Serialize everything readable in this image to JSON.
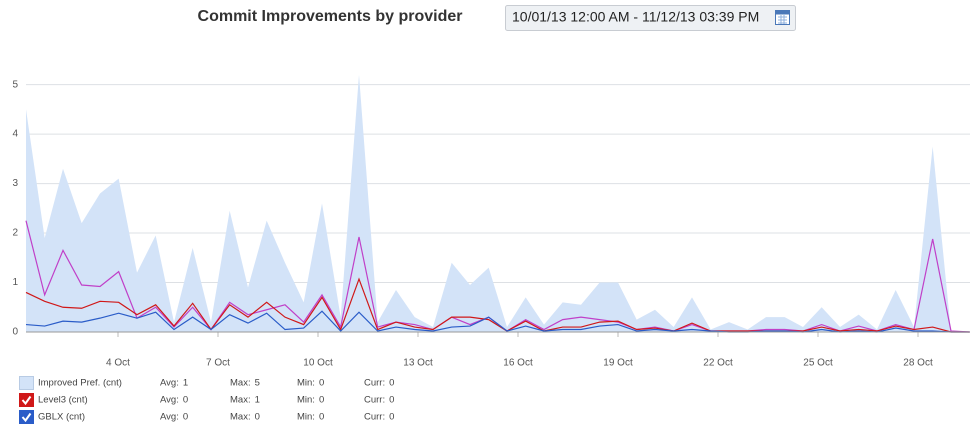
{
  "chart_data": {
    "type": "line",
    "title": "Commit Improvements by provider",
    "date_range": "10/01/13 12:00 AM - 11/12/13 03:39 PM",
    "x": [
      1.24,
      1.8,
      2.35,
      2.91,
      3.46,
      4.02,
      4.57,
      5.13,
      5.68,
      6.24,
      6.79,
      7.35,
      7.9,
      8.46,
      9.01,
      9.57,
      10.12,
      10.68,
      11.23,
      11.79,
      12.34,
      12.9,
      13.45,
      14.01,
      14.56,
      15.12,
      15.67,
      16.23,
      16.78,
      17.34,
      17.89,
      18.45,
      19.0,
      19.56,
      20.11,
      20.67,
      21.22,
      21.78,
      22.33,
      22.89,
      23.44,
      24.0,
      24.55,
      25.11,
      25.66,
      26.22,
      26.77,
      27.33,
      27.88,
      28.44,
      28.99,
      29.55
    ],
    "xlim": [
      1.24,
      29.56
    ],
    "xticks": [
      {
        "value": 4,
        "label": "4 Oct"
      },
      {
        "value": 7,
        "label": "7 Oct"
      },
      {
        "value": 10,
        "label": "10 Oct"
      },
      {
        "value": 13,
        "label": "13 Oct"
      },
      {
        "value": 16,
        "label": "16 Oct"
      },
      {
        "value": 19,
        "label": "19 Oct"
      },
      {
        "value": 22,
        "label": "22 Oct"
      },
      {
        "value": 25,
        "label": "25 Oct"
      },
      {
        "value": 28,
        "label": "28 Oct"
      }
    ],
    "ylim": [
      0,
      5.7
    ],
    "yticks": [
      0,
      1,
      2,
      3,
      4,
      5
    ],
    "grid": true,
    "stat_labels": [
      "Avg:",
      "Max:",
      "Min:",
      "Curr:"
    ],
    "series": [
      {
        "name": "Improved Pref. (cnt)",
        "kind": "area",
        "color": "#d3e3f8",
        "stats": [
          1,
          5,
          0,
          0
        ],
        "values": [
          4.5,
          1.9,
          3.3,
          2.2,
          2.8,
          3.1,
          1.2,
          1.95,
          0.2,
          1.7,
          0.2,
          2.45,
          0.9,
          2.25,
          1.4,
          0.6,
          2.6,
          0.3,
          5.2,
          0.2,
          0.85,
          0.3,
          0.1,
          1.4,
          0.95,
          1.3,
          0.1,
          0.7,
          0.15,
          0.6,
          0.55,
          1.0,
          1.0,
          0.25,
          0.45,
          0.1,
          0.7,
          0.05,
          0.2,
          0.05,
          0.3,
          0.3,
          0.1,
          0.5,
          0.1,
          0.35,
          0.05,
          0.85,
          0.1,
          3.75,
          0,
          0
        ]
      },
      {
        "kind": "line",
        "color": "#c040c8",
        "values": [
          2.25,
          0.75,
          1.65,
          0.95,
          0.92,
          1.22,
          0.28,
          0.5,
          0.1,
          0.5,
          0.05,
          0.6,
          0.35,
          0.45,
          0.55,
          0.2,
          0.75,
          0.1,
          1.92,
          0.1,
          0.2,
          0.15,
          0.05,
          0.3,
          0.15,
          0.3,
          0.02,
          0.25,
          0.05,
          0.25,
          0.3,
          0.25,
          0.2,
          0.05,
          0.1,
          0.02,
          0.15,
          0.02,
          0.02,
          0.02,
          0.05,
          0.05,
          0.02,
          0.15,
          0.02,
          0.12,
          0.02,
          0.15,
          0.05,
          1.88,
          0.02,
          0
        ]
      },
      {
        "name": "Level3 (cnt)",
        "kind": "line",
        "color": "#d01818",
        "stats": [
          0,
          1,
          0,
          0
        ],
        "values": [
          0.8,
          0.62,
          0.5,
          0.48,
          0.62,
          0.6,
          0.35,
          0.55,
          0.12,
          0.58,
          0.05,
          0.55,
          0.3,
          0.6,
          0.3,
          0.15,
          0.7,
          0.05,
          1.07,
          0.05,
          0.2,
          0.1,
          0.05,
          0.3,
          0.3,
          0.25,
          0.02,
          0.22,
          0.02,
          0.1,
          0.1,
          0.2,
          0.22,
          0.05,
          0.08,
          0.02,
          0.18,
          0.02,
          0.02,
          0.02,
          0.02,
          0.02,
          0.02,
          0.1,
          0.02,
          0.05,
          0.02,
          0.12,
          0.05,
          0.1,
          0,
          0
        ]
      },
      {
        "name": "GBLX (cnt)",
        "kind": "line",
        "color": "#2a5cc8",
        "stats": [
          0,
          0,
          0,
          0
        ],
        "values": [
          0.15,
          0.12,
          0.22,
          0.2,
          0.28,
          0.38,
          0.28,
          0.4,
          0.05,
          0.3,
          0.05,
          0.35,
          0.18,
          0.38,
          0.05,
          0.08,
          0.42,
          0.02,
          0.4,
          0.02,
          0.1,
          0.05,
          0.02,
          0.1,
          0.12,
          0.3,
          0.02,
          0.12,
          0.02,
          0.05,
          0.05,
          0.12,
          0.15,
          0.02,
          0.05,
          0.02,
          0.05,
          0.02,
          0,
          0,
          0.02,
          0.02,
          0,
          0.05,
          0,
          0.02,
          0,
          0.08,
          0.02,
          0.02,
          0,
          0
        ]
      }
    ]
  }
}
